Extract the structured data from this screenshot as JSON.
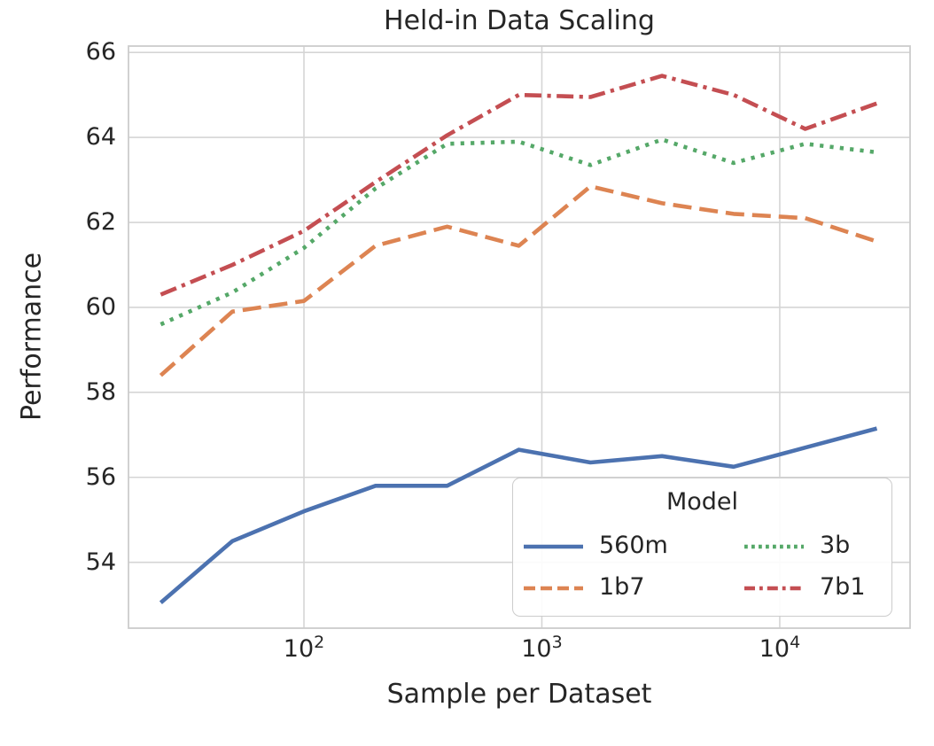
{
  "title": "Held-in Data Scaling",
  "axes": {
    "xlabel": "Sample per Dataset",
    "ylabel": "Performance"
  },
  "legend": {
    "title": "Model",
    "entries": [
      "560m",
      "1b7",
      "3b",
      "7b1"
    ]
  },
  "colors": {
    "blue": "#4C72B0",
    "orange": "#DD8452",
    "green": "#55A868",
    "red": "#C44E52",
    "grid": "#d5d5d5",
    "spine": "#cccccc",
    "text": "#262626"
  },
  "chart_data": {
    "type": "line",
    "title": "Held-in Data Scaling",
    "xlabel": "Sample per Dataset",
    "ylabel": "Performance",
    "x_scale": "log",
    "grid": true,
    "legend_title": "Model",
    "legend_position": "lower right",
    "x": [
      25,
      50,
      100,
      200,
      400,
      800,
      1600,
      3200,
      6400,
      12800,
      25600
    ],
    "series": [
      {
        "name": "560m",
        "color": "#4C72B0",
        "dash": "solid",
        "values": [
          53.05,
          54.5,
          55.2,
          55.8,
          55.8,
          56.65,
          56.35,
          56.5,
          56.25,
          56.7,
          57.15
        ]
      },
      {
        "name": "1b7",
        "color": "#DD8452",
        "dash": "dashed",
        "values": [
          58.4,
          59.9,
          60.15,
          61.45,
          61.9,
          61.45,
          62.85,
          62.45,
          62.2,
          62.1,
          61.55
        ]
      },
      {
        "name": "3b",
        "color": "#55A868",
        "dash": "dotted",
        "values": [
          59.6,
          60.35,
          61.4,
          62.8,
          63.85,
          63.9,
          63.35,
          63.95,
          63.4,
          63.85,
          63.65
        ]
      },
      {
        "name": "7b1",
        "color": "#C44E52",
        "dash": "dashdot",
        "values": [
          60.3,
          61.0,
          61.8,
          62.95,
          64.05,
          65.0,
          64.95,
          65.45,
          65.0,
          64.2,
          64.8
        ]
      }
    ],
    "xlim": [
      18.3,
      35300
    ],
    "ylim": [
      52.45,
      66.15
    ],
    "xticks": {
      "values": [
        100,
        1000,
        10000
      ],
      "base": "10",
      "exponents": [
        "2",
        "3",
        "4"
      ]
    },
    "yticks": [
      54,
      56,
      58,
      60,
      62,
      64,
      66
    ]
  }
}
